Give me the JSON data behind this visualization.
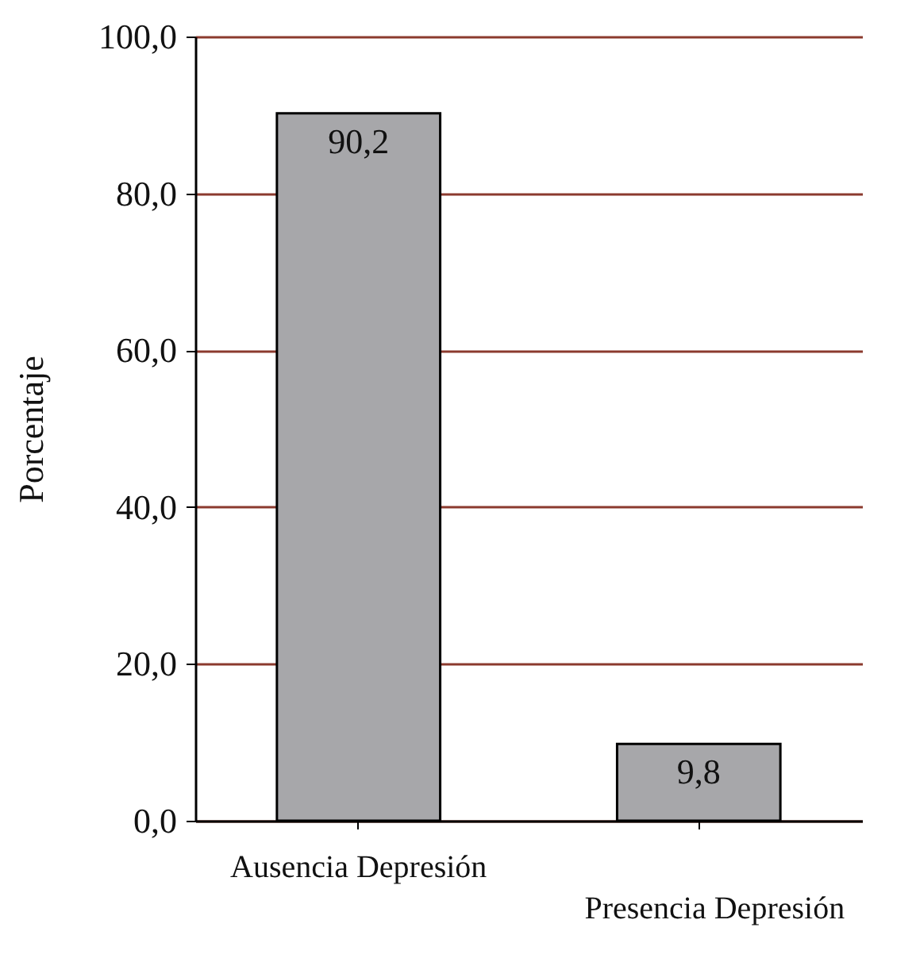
{
  "chart_data": {
    "type": "bar",
    "ylabel": "Porcentaje",
    "categories": [
      "Ausencia Depresión",
      "Presencia Depresión"
    ],
    "values": [
      90.2,
      9.8
    ],
    "value_labels": [
      "90,2",
      "9,8"
    ],
    "color": "#a7a7aa",
    "ylim": [
      0,
      100
    ],
    "yticks": [
      {
        "value": 0,
        "label": "0,0"
      },
      {
        "value": 20,
        "label": "20,0"
      },
      {
        "value": 40,
        "label": "40,0"
      },
      {
        "value": 60,
        "label": "60,0"
      },
      {
        "value": 80,
        "label": "80,0"
      },
      {
        "value": 100,
        "label": "100,0"
      }
    ],
    "grid": "y"
  }
}
